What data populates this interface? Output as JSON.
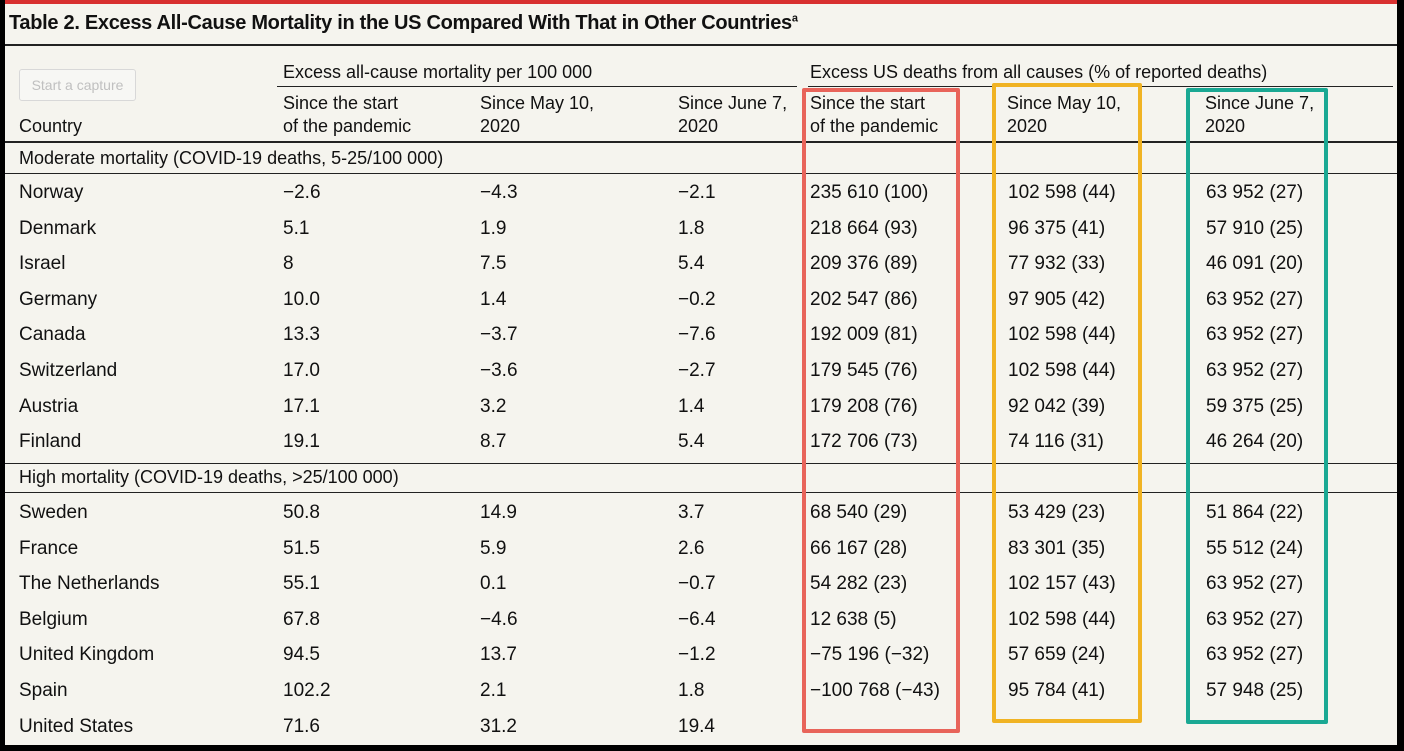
{
  "title": "Table 2. Excess All-Cause Mortality in the US Compared With That in Other Countries",
  "title_footnote": "a",
  "capture_button": "Start a capture",
  "headers": {
    "group1": "Excess all-cause mortality per 100 000",
    "group2": "Excess US deaths from all causes (% of reported deaths)",
    "country": "Country",
    "col_a_line1": "Since the start",
    "col_a_line2": "of the pandemic",
    "col_b_line1": "Since May 10,",
    "col_b_line2": "2020",
    "col_c_line1": "Since June 7,",
    "col_c_line2": "2020"
  },
  "sections": [
    {
      "label": "Moderate mortality (COVID-19 deaths, 5-25/100 000)",
      "rows": [
        {
          "country": "Norway",
          "m1": "−2.6",
          "m2": "−4.3",
          "m3": "−2.1",
          "d1": "235 610 (100)",
          "d2": "102 598 (44)",
          "d3": "63 952 (27)"
        },
        {
          "country": "Denmark",
          "m1": "5.1",
          "m2": "1.9",
          "m3": "1.8",
          "d1": "218 664 (93)",
          "d2": "96 375 (41)",
          "d3": "57 910 (25)"
        },
        {
          "country": "Israel",
          "m1": "8",
          "m2": "7.5",
          "m3": "5.4",
          "d1": "209 376 (89)",
          "d2": "77 932 (33)",
          "d3": "46 091 (20)"
        },
        {
          "country": "Germany",
          "m1": "10.0",
          "m2": "1.4",
          "m3": "−0.2",
          "d1": "202 547 (86)",
          "d2": "97 905 (42)",
          "d3": "63 952 (27)"
        },
        {
          "country": "Canada",
          "m1": "13.3",
          "m2": "−3.7",
          "m3": "−7.6",
          "d1": "192 009 (81)",
          "d2": "102 598 (44)",
          "d3": "63 952 (27)"
        },
        {
          "country": "Switzerland",
          "m1": "17.0",
          "m2": "−3.6",
          "m3": "−2.7",
          "d1": "179 545 (76)",
          "d2": "102 598 (44)",
          "d3": "63 952 (27)"
        },
        {
          "country": "Austria",
          "m1": "17.1",
          "m2": "3.2",
          "m3": "1.4",
          "d1": "179 208 (76)",
          "d2": "92 042 (39)",
          "d3": "59 375 (25)"
        },
        {
          "country": "Finland",
          "m1": "19.1",
          "m2": "8.7",
          "m3": "5.4",
          "d1": "172 706 (73)",
          "d2": "74 116 (31)",
          "d3": "46 264 (20)"
        }
      ]
    },
    {
      "label": "High mortality (COVID-19 deaths, >25/100 000)",
      "rows": [
        {
          "country": "Sweden",
          "m1": "50.8",
          "m2": "14.9",
          "m3": "3.7",
          "d1": "68 540 (29)",
          "d2": "53 429 (23)",
          "d3": "51 864 (22)"
        },
        {
          "country": "France",
          "m1": "51.5",
          "m2": "5.9",
          "m3": "2.6",
          "d1": "66 167 (28)",
          "d2": "83 301 (35)",
          "d3": "55 512 (24)"
        },
        {
          "country": "The Netherlands",
          "m1": "55.1",
          "m2": "0.1",
          "m3": "−0.7",
          "d1": "54 282 (23)",
          "d2": "102 157 (43)",
          "d3": "63 952 (27)"
        },
        {
          "country": "Belgium",
          "m1": "67.8",
          "m2": "−4.6",
          "m3": "−6.4",
          "d1": "12 638 (5)",
          "d2": "102 598 (44)",
          "d3": "63 952 (27)"
        },
        {
          "country": "United Kingdom",
          "m1": "94.5",
          "m2": "13.7",
          "m3": "−1.2",
          "d1": "−75 196 (−32)",
          "d2": "57 659 (24)",
          "d3": "63 952 (27)"
        },
        {
          "country": "Spain",
          "m1": "102.2",
          "m2": "2.1",
          "m3": "1.8",
          "d1": "−100 768 (−43)",
          "d2": "95 784 (41)",
          "d3": "57 948 (25)"
        },
        {
          "country": "United States",
          "m1": "71.6",
          "m2": "31.2",
          "m3": "19.4",
          "d1": "",
          "d2": "",
          "d3": ""
        }
      ]
    }
  ],
  "highlight_colors": {
    "col1": "#e8645a",
    "col2": "#f0b323",
    "col3": "#1aa893"
  }
}
